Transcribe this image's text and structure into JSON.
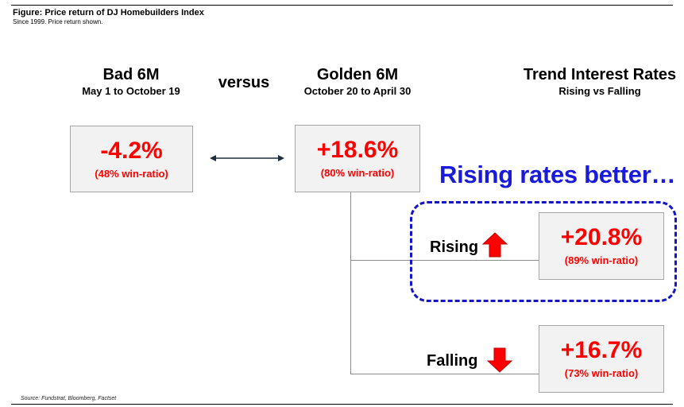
{
  "figure": {
    "title": "Figure: Price return of DJ Homebuilders Index",
    "subtitle": "Since 1999. Price return shown.",
    "source": "Source: Fundstrat, Bloomberg, Factset"
  },
  "columns": {
    "bad": {
      "title": "Bad 6M",
      "subtitle": "May 1 to October 19"
    },
    "versus": "versus",
    "golden": {
      "title": "Golden 6M",
      "subtitle": "October 20 to April 30"
    },
    "trend": {
      "title": "Trend Interest Rates",
      "subtitle": "Rising vs Falling"
    }
  },
  "boxes": {
    "bad": {
      "value": "-4.2%",
      "ratio": "(48% win-ratio)"
    },
    "golden": {
      "value": "+18.6%",
      "ratio": "(80% win-ratio)"
    },
    "rising": {
      "value": "+20.8%",
      "ratio": "(89% win-ratio)"
    },
    "falling": {
      "value": "+16.7%",
      "ratio": "(73% win-ratio)"
    }
  },
  "branches": {
    "rising_label": "Rising",
    "falling_label": "Falling"
  },
  "callout": "Rising rates better…",
  "colors": {
    "value_red": "#ff0000",
    "callout_blue": "#1a1adb",
    "box_fill": "#f2f2f2"
  }
}
